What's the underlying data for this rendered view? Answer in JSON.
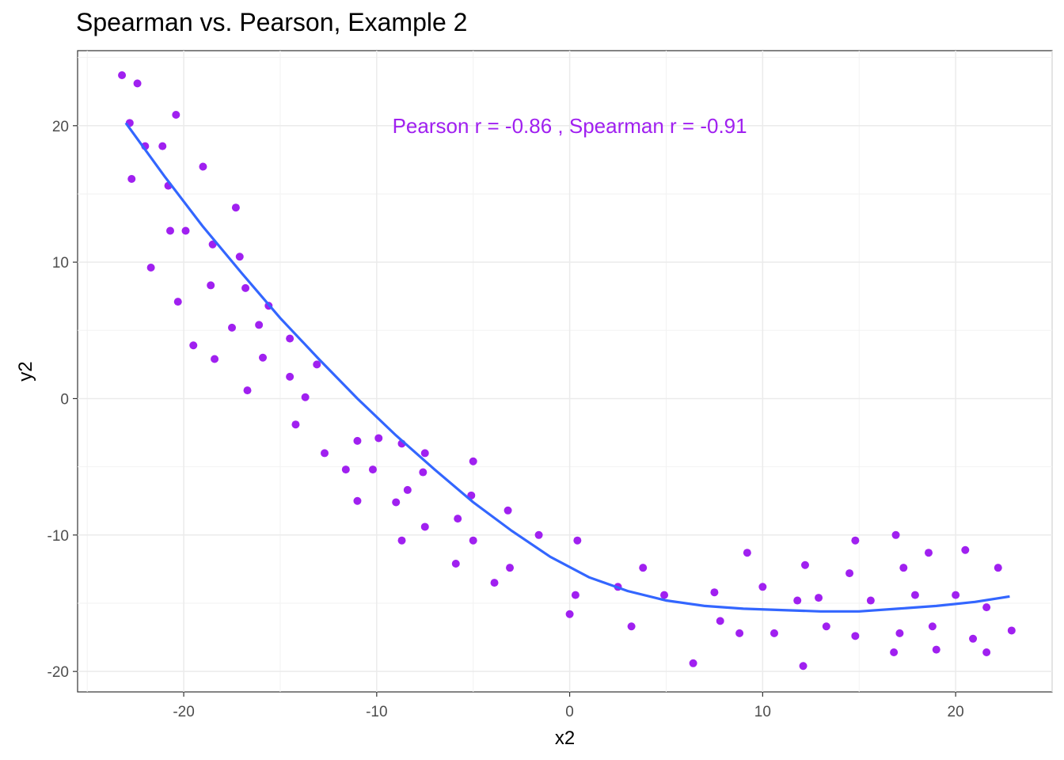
{
  "chart_data": {
    "type": "scatter",
    "title": "Spearman vs. Pearson, Example 2",
    "xlabel": "x2",
    "ylabel": "y2",
    "xlim": [
      -25.5,
      25.0
    ],
    "ylim": [
      -21.5,
      25.5
    ],
    "x_ticks": [
      -20,
      -10,
      0,
      10,
      20
    ],
    "y_ticks": [
      -20,
      -10,
      0,
      10,
      20
    ],
    "x_tick_labels": [
      "-20",
      "-10",
      "0",
      "10",
      "20"
    ],
    "y_tick_labels": [
      "-20",
      "-10",
      "0",
      "10",
      "20"
    ],
    "grid": true,
    "point_color": "#a020f0",
    "line_color": "#3366ff",
    "annotation": {
      "text": "Pearson r =  -0.86 , Spearman r =  -0.91",
      "x": 0,
      "y": 20,
      "color": "#a020f0"
    },
    "points": [
      [
        -23.2,
        23.7
      ],
      [
        -22.4,
        23.1
      ],
      [
        -22.8,
        20.2
      ],
      [
        -20.4,
        20.8
      ],
      [
        -21.1,
        18.5
      ],
      [
        -22.0,
        18.5
      ],
      [
        -22.7,
        16.1
      ],
      [
        -19.0,
        17.0
      ],
      [
        -20.8,
        15.6
      ],
      [
        -17.3,
        14.0
      ],
      [
        -20.7,
        12.3
      ],
      [
        -19.9,
        12.3
      ],
      [
        -18.5,
        11.3
      ],
      [
        -17.1,
        10.4
      ],
      [
        -21.7,
        9.6
      ],
      [
        -18.6,
        8.3
      ],
      [
        -16.8,
        8.1
      ],
      [
        -20.3,
        7.1
      ],
      [
        -15.6,
        6.8
      ],
      [
        -16.1,
        5.4
      ],
      [
        -17.5,
        5.2
      ],
      [
        -14.5,
        4.4
      ],
      [
        -19.5,
        3.9
      ],
      [
        -15.9,
        3.0
      ],
      [
        -18.4,
        2.9
      ],
      [
        -13.1,
        2.5
      ],
      [
        -14.5,
        1.6
      ],
      [
        -16.7,
        0.6
      ],
      [
        -13.7,
        0.1
      ],
      [
        -14.2,
        -1.9
      ],
      [
        -9.9,
        -2.9
      ],
      [
        -11.0,
        -3.1
      ],
      [
        -8.7,
        -3.3
      ],
      [
        -12.7,
        -4.0
      ],
      [
        -7.5,
        -4.0
      ],
      [
        -5.0,
        -4.6
      ],
      [
        -11.6,
        -5.2
      ],
      [
        -10.2,
        -5.2
      ],
      [
        -7.6,
        -5.4
      ],
      [
        -8.4,
        -6.7
      ],
      [
        -5.1,
        -7.1
      ],
      [
        -11.0,
        -7.5
      ],
      [
        -9.0,
        -7.6
      ],
      [
        -3.2,
        -8.2
      ],
      [
        -5.8,
        -8.8
      ],
      [
        -7.5,
        -9.4
      ],
      [
        -1.6,
        -10.0
      ],
      [
        -8.7,
        -10.4
      ],
      [
        -5.0,
        -10.4
      ],
      [
        0.4,
        -10.4
      ],
      [
        -5.9,
        -12.1
      ],
      [
        -3.1,
        -12.4
      ],
      [
        -3.9,
        -13.5
      ],
      [
        0.3,
        -14.4
      ],
      [
        2.5,
        -13.8
      ],
      [
        3.8,
        -12.4
      ],
      [
        4.9,
        -14.4
      ],
      [
        0.0,
        -15.8
      ],
      [
        3.2,
        -16.7
      ],
      [
        6.4,
        -19.4
      ],
      [
        7.5,
        -14.2
      ],
      [
        7.8,
        -16.3
      ],
      [
        9.2,
        -11.3
      ],
      [
        8.8,
        -17.2
      ],
      [
        10.0,
        -13.8
      ],
      [
        10.6,
        -17.2
      ],
      [
        11.8,
        -14.8
      ],
      [
        12.2,
        -12.2
      ],
      [
        12.9,
        -14.6
      ],
      [
        13.3,
        -16.7
      ],
      [
        12.1,
        -19.6
      ],
      [
        14.5,
        -12.8
      ],
      [
        14.8,
        -10.4
      ],
      [
        14.8,
        -17.4
      ],
      [
        15.6,
        -14.8
      ],
      [
        16.9,
        -10.0
      ],
      [
        17.3,
        -12.4
      ],
      [
        17.1,
        -17.2
      ],
      [
        16.8,
        -18.6
      ],
      [
        17.9,
        -14.4
      ],
      [
        18.6,
        -11.3
      ],
      [
        18.8,
        -16.7
      ],
      [
        19.0,
        -18.4
      ],
      [
        20.0,
        -14.4
      ],
      [
        20.5,
        -11.1
      ],
      [
        20.9,
        -17.6
      ],
      [
        21.6,
        -15.3
      ],
      [
        21.6,
        -18.6
      ],
      [
        22.2,
        -12.4
      ],
      [
        22.9,
        -17.0
      ]
    ],
    "smooth_line": [
      [
        -23.0,
        20.2
      ],
      [
        -21.0,
        16.3
      ],
      [
        -19.0,
        12.6
      ],
      [
        -17.0,
        9.2
      ],
      [
        -15.0,
        5.9
      ],
      [
        -13.0,
        2.9
      ],
      [
        -11.0,
        0.0
      ],
      [
        -9.0,
        -2.7
      ],
      [
        -7.0,
        -5.2
      ],
      [
        -5.0,
        -7.6
      ],
      [
        -3.0,
        -9.7
      ],
      [
        -1.0,
        -11.6
      ],
      [
        1.0,
        -13.1
      ],
      [
        3.0,
        -14.1
      ],
      [
        5.0,
        -14.8
      ],
      [
        7.0,
        -15.2
      ],
      [
        9.0,
        -15.4
      ],
      [
        11.0,
        -15.5
      ],
      [
        13.0,
        -15.6
      ],
      [
        15.0,
        -15.6
      ],
      [
        17.0,
        -15.4
      ],
      [
        19.0,
        -15.2
      ],
      [
        21.0,
        -14.9
      ],
      [
        22.8,
        -14.5
      ]
    ]
  }
}
